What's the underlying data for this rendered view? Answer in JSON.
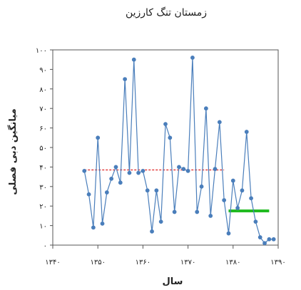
{
  "chart_data": {
    "type": "line",
    "title": "زمستان تنگ کارزین",
    "xlabel": "سال",
    "ylabel": "میانگین دبی فصلی",
    "xlim": [
      1340,
      1390
    ],
    "ylim": [
      0,
      100
    ],
    "x_ticks": [
      {
        "value": 1340,
        "label": "۱۳۴۰"
      },
      {
        "value": 1350,
        "label": "۱۳۵۰"
      },
      {
        "value": 1360,
        "label": "۱۳۶۰"
      },
      {
        "value": 1370,
        "label": "۱۳۷۰"
      },
      {
        "value": 1380,
        "label": "۱۳۸۰"
      },
      {
        "value": 1390,
        "label": "۱۳۹۰"
      }
    ],
    "y_ticks": [
      {
        "value": 0,
        "label": "۰"
      },
      {
        "value": 10,
        "label": "۱۰"
      },
      {
        "value": 20,
        "label": "۲۰"
      },
      {
        "value": 30,
        "label": "۳۰"
      },
      {
        "value": 40,
        "label": "۴۰"
      },
      {
        "value": 50,
        "label": "۵۰"
      },
      {
        "value": 60,
        "label": "۶۰"
      },
      {
        "value": 70,
        "label": "۷۰"
      },
      {
        "value": 80,
        "label": "۸۰"
      },
      {
        "value": 90,
        "label": "۹۰"
      },
      {
        "value": 100,
        "label": "۱۰۰"
      }
    ],
    "series": [
      {
        "color": "#4a7ebb",
        "points": [
          [
            1347,
            38
          ],
          [
            1348,
            26
          ],
          [
            1349,
            9
          ],
          [
            1350,
            55
          ],
          [
            1351,
            11
          ],
          [
            1352,
            27
          ],
          [
            1353,
            34
          ],
          [
            1354,
            40
          ],
          [
            1355,
            32
          ],
          [
            1356,
            85
          ],
          [
            1357,
            37
          ],
          [
            1358,
            95
          ],
          [
            1359,
            37
          ],
          [
            1360,
            38
          ],
          [
            1361,
            28
          ],
          [
            1362,
            7
          ],
          [
            1363,
            28
          ],
          [
            1364,
            12
          ],
          [
            1365,
            62
          ],
          [
            1366,
            55
          ],
          [
            1367,
            17
          ],
          [
            1368,
            40
          ],
          [
            1369,
            39
          ],
          [
            1370,
            38
          ],
          [
            1371,
            96
          ],
          [
            1372,
            17
          ],
          [
            1373,
            30
          ],
          [
            1374,
            70
          ],
          [
            1375,
            15
          ],
          [
            1376,
            39
          ],
          [
            1377,
            63
          ],
          [
            1378,
            23
          ],
          [
            1379,
            6
          ],
          [
            1380,
            33
          ],
          [
            1381,
            19
          ],
          [
            1382,
            28
          ],
          [
            1383,
            58
          ],
          [
            1384,
            24
          ],
          [
            1385,
            12
          ],
          [
            1386,
            4
          ],
          [
            1387,
            1
          ],
          [
            1388,
            3
          ],
          [
            1389,
            3
          ]
        ]
      }
    ],
    "reference_lines": [
      {
        "x_start": 1347,
        "x_end": 1378,
        "y": 38.5,
        "color": "#e02020",
        "style": "dashed"
      },
      {
        "x_start": 1379,
        "x_end": 1388,
        "y": 17.5,
        "color": "#22bb22",
        "style": "solid"
      }
    ]
  }
}
